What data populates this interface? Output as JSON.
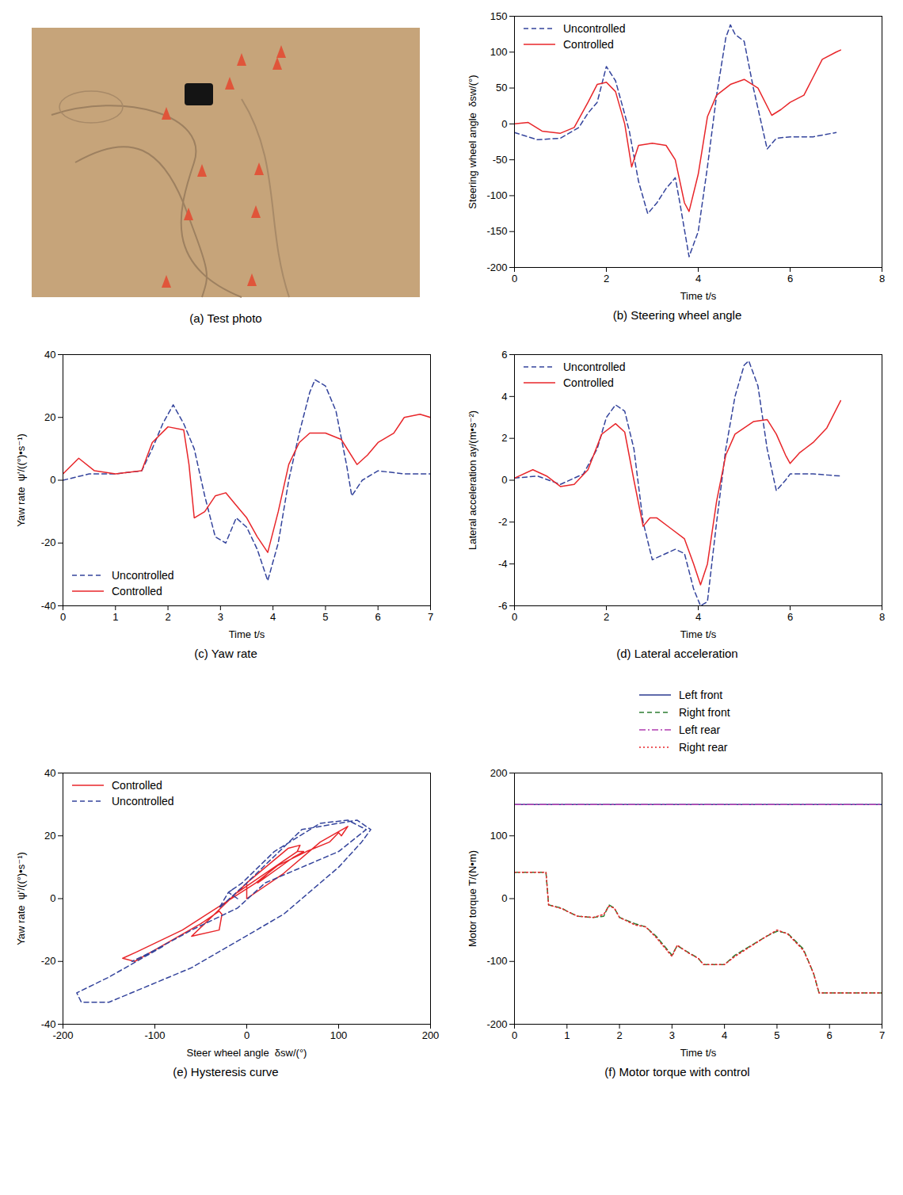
{
  "chart_data": [
    {
      "type": "image",
      "caption": "(a) Test photo"
    },
    {
      "type": "line",
      "caption": "(b) Steering wheel angle",
      "x_label": "Time t/s",
      "y_label": "Steering wheel angle  δsw/(°)",
      "xlim": [
        0,
        8
      ],
      "xticks": [
        0,
        2,
        4,
        6,
        8
      ],
      "ylim": [
        -200,
        150
      ],
      "yticks": [
        -200,
        -150,
        -100,
        -50,
        0,
        50,
        100,
        150
      ],
      "legend": "upper left",
      "series": [
        {
          "name": "Uncontrolled",
          "color": "#34449c",
          "line_style": "dashed",
          "x": [
            0,
            0.5,
            1,
            1.4,
            1.6,
            1.8,
            2.0,
            2.2,
            2.5,
            2.7,
            2.9,
            3.1,
            3.3,
            3.5,
            3.6,
            3.8,
            4.0,
            4.2,
            4.4,
            4.6,
            4.7,
            4.8,
            5.0,
            5.2,
            5.5,
            5.7,
            6.0,
            6.5,
            7.0
          ],
          "values": [
            -12,
            -22,
            -20,
            -5,
            15,
            30,
            80,
            60,
            -10,
            -80,
            -125,
            -110,
            -90,
            -75,
            -110,
            -185,
            -150,
            -60,
            40,
            120,
            138,
            125,
            115,
            50,
            -35,
            -20,
            -18,
            -18,
            -12
          ]
        },
        {
          "name": "Controlled",
          "color": "#e8262a",
          "line_style": "solid",
          "x": [
            0,
            0.3,
            0.6,
            1.0,
            1.3,
            1.6,
            1.8,
            2.0,
            2.2,
            2.4,
            2.55,
            2.7,
            3.0,
            3.3,
            3.5,
            3.7,
            3.8,
            4.0,
            4.2,
            4.4,
            4.7,
            5.0,
            5.3,
            5.6,
            5.8,
            6.0,
            6.3,
            6.5,
            6.7,
            7.0,
            7.1
          ],
          "values": [
            0,
            2,
            -10,
            -13,
            -5,
            30,
            55,
            58,
            45,
            0,
            -60,
            -30,
            -27,
            -30,
            -50,
            -110,
            -122,
            -70,
            10,
            40,
            55,
            62,
            50,
            12,
            20,
            30,
            40,
            65,
            90,
            100,
            103
          ]
        }
      ]
    },
    {
      "type": "line",
      "caption": "(c) Yaw rate",
      "x_label": "Time t/s",
      "y_label": "Yaw rate  ψ'/((°)•s⁻¹)",
      "xlim": [
        0,
        7
      ],
      "xticks": [
        0,
        1,
        2,
        3,
        4,
        5,
        6,
        7
      ],
      "ylim": [
        -40,
        40
      ],
      "yticks": [
        -40,
        -20,
        0,
        20,
        40
      ],
      "legend": "lower left",
      "series": [
        {
          "name": "Uncontrolled",
          "color": "#34449c",
          "line_style": "dashed",
          "x": [
            0,
            0.5,
            1,
            1.5,
            1.7,
            1.9,
            2.1,
            2.3,
            2.5,
            2.7,
            2.9,
            3.1,
            3.3,
            3.5,
            3.7,
            3.9,
            4.1,
            4.3,
            4.5,
            4.7,
            4.8,
            5.0,
            5.2,
            5.4,
            5.5,
            5.7,
            6.0,
            6.5,
            7.0
          ],
          "values": [
            0,
            2,
            2,
            3,
            10,
            18,
            24,
            18,
            10,
            -5,
            -18,
            -20,
            -12,
            -15,
            -22,
            -32,
            -20,
            0,
            15,
            28,
            32,
            30,
            22,
            5,
            -5,
            0,
            3,
            2,
            2
          ]
        },
        {
          "name": "Controlled",
          "color": "#e8262a",
          "line_style": "solid",
          "x": [
            0,
            0.3,
            0.6,
            1.0,
            1.5,
            1.7,
            2.0,
            2.3,
            2.4,
            2.5,
            2.7,
            2.9,
            3.1,
            3.3,
            3.5,
            3.7,
            3.9,
            4.1,
            4.3,
            4.5,
            4.7,
            5.0,
            5.3,
            5.6,
            5.8,
            6.0,
            6.3,
            6.5,
            6.8,
            7.0
          ],
          "values": [
            2,
            7,
            3,
            2,
            3,
            12,
            17,
            16,
            5,
            -12,
            -10,
            -5,
            -4,
            -8,
            -12,
            -18,
            -23,
            -10,
            5,
            12,
            15,
            15,
            13,
            5,
            8,
            12,
            15,
            20,
            21,
            20
          ]
        }
      ]
    },
    {
      "type": "line",
      "caption": "(d) Lateral acceleration",
      "x_label": "Time t/s",
      "y_label": "Lateral acceleration ay/(m•s⁻²)",
      "xlim": [
        0,
        8
      ],
      "xticks": [
        0,
        2,
        4,
        6,
        8
      ],
      "ylim": [
        -6,
        6
      ],
      "yticks": [
        -6,
        -4,
        -2,
        0,
        2,
        4,
        6
      ],
      "legend": "upper left",
      "series": [
        {
          "name": "Uncontrolled",
          "color": "#34449c",
          "line_style": "dashed",
          "x": [
            0,
            0.5,
            1,
            1.5,
            1.8,
            2.0,
            2.2,
            2.4,
            2.6,
            2.8,
            3.0,
            3.2,
            3.5,
            3.7,
            3.9,
            4.05,
            4.2,
            4.4,
            4.6,
            4.8,
            5.0,
            5.1,
            5.3,
            5.5,
            5.7,
            5.9,
            6.0,
            6.5,
            7.1
          ],
          "values": [
            0.1,
            0.2,
            -0.2,
            0.3,
            1.5,
            3,
            3.6,
            3.3,
            1.5,
            -2,
            -3.8,
            -3.6,
            -3.3,
            -3.5,
            -5.2,
            -6,
            -5.8,
            -2,
            1.5,
            4,
            5.5,
            5.7,
            4.5,
            1.5,
            -0.5,
            0,
            0.3,
            0.3,
            0.2
          ]
        },
        {
          "name": "Controlled",
          "color": "#e8262a",
          "line_style": "solid",
          "x": [
            0,
            0.4,
            0.7,
            1.0,
            1.3,
            1.6,
            1.9,
            2.2,
            2.4,
            2.6,
            2.8,
            2.95,
            3.1,
            3.4,
            3.7,
            3.9,
            4.05,
            4.2,
            4.4,
            4.6,
            4.8,
            5.2,
            5.5,
            5.7,
            5.9,
            6.0,
            6.2,
            6.5,
            6.8,
            7.1
          ],
          "values": [
            0.1,
            0.5,
            0.2,
            -0.3,
            -0.2,
            0.5,
            2.2,
            2.7,
            2.3,
            0,
            -2.2,
            -1.8,
            -1.8,
            -2.3,
            -2.8,
            -4,
            -5,
            -4,
            -1,
            1.2,
            2.2,
            2.8,
            2.9,
            2.2,
            1.2,
            0.8,
            1.3,
            1.8,
            2.5,
            3.8
          ]
        }
      ]
    },
    {
      "type": "line",
      "caption": "(e) Hysteresis curve",
      "x_label": "Steer wheel angle  δsw/(°)",
      "y_label": "Yaw rate  ψ'/((°)•s⁻¹)",
      "xlim": [
        -200,
        200
      ],
      "xticks": [
        -200,
        -100,
        0,
        100,
        200
      ],
      "ylim": [
        -40,
        40
      ],
      "yticks": [
        -40,
        -20,
        0,
        20,
        40
      ],
      "legend": "upper left",
      "series": [
        {
          "name": "Controlled",
          "color": "#e8262a",
          "line_style": "solid",
          "x": [
            0,
            0,
            -10,
            -5,
            30,
            55,
            58,
            45,
            0,
            -60,
            -30,
            -27,
            -30,
            -50,
            -110,
            -122,
            -135,
            -120,
            -70,
            10,
            40,
            55,
            62,
            50,
            12,
            30,
            65,
            90,
            100,
            103,
            110,
            80,
            40,
            0
          ],
          "values": [
            0,
            5,
            2,
            3,
            10,
            15,
            17,
            16,
            5,
            -12,
            -10,
            -5,
            -4,
            -8,
            -18,
            -20,
            -19,
            -17,
            -10,
            5,
            12,
            15,
            15,
            13,
            5,
            10,
            15,
            18,
            21,
            20,
            23,
            18,
            8,
            0
          ]
        },
        {
          "name": "Uncontrolled",
          "color": "#34449c",
          "line_style": "dashed",
          "x": [
            -10,
            -20,
            -5,
            30,
            80,
            110,
            130,
            100,
            60,
            20,
            -10,
            -60,
            -110,
            -125,
            -90,
            -150,
            -185,
            -180,
            -150,
            -60,
            40,
            100,
            125,
            135,
            120,
            60,
            0,
            -30,
            -20,
            -15
          ],
          "values": [
            0,
            2,
            5,
            15,
            24,
            25,
            22,
            15,
            10,
            5,
            -3,
            -10,
            -18,
            -20,
            -15,
            -25,
            -30,
            -33,
            -33,
            -22,
            -5,
            10,
            18,
            22,
            25,
            22,
            5,
            -3,
            2,
            3
          ]
        }
      ]
    },
    {
      "type": "line",
      "caption": "(f) Motor torque with control",
      "x_label": "Time t/s",
      "y_label": "Motor torque T/(N•m)",
      "xlim": [
        0,
        7
      ],
      "xticks": [
        0,
        1,
        2,
        3,
        4,
        5,
        6,
        7
      ],
      "ylim": [
        -200,
        200
      ],
      "yticks": [
        -200,
        -100,
        0,
        100,
        200
      ],
      "legend": "top",
      "series": [
        {
          "name": "Left front",
          "color": "#2b3a8f",
          "line_style": "solid",
          "x": [
            0,
            7
          ],
          "values": [
            150,
            150
          ]
        },
        {
          "name": "Right front",
          "color": "#2e7d32",
          "line_style": "dashed",
          "x": [
            0,
            0.6,
            0.65,
            0.9,
            1.0,
            1.2,
            1.5,
            1.7,
            1.8,
            1.9,
            2.0,
            2.3,
            2.5,
            2.7,
            2.9,
            3.0,
            3.1,
            3.3,
            3.5,
            3.6,
            4.0,
            4.2,
            4.5,
            4.8,
            5.0,
            5.2,
            5.5,
            5.6,
            5.7,
            5.8,
            7.0
          ],
          "values": [
            42,
            42,
            -10,
            -15,
            -20,
            -28,
            -30,
            -28,
            -10,
            -15,
            -30,
            -40,
            -45,
            -60,
            -80,
            -90,
            -75,
            -85,
            -95,
            -105,
            -105,
            -90,
            -75,
            -60,
            -52,
            -55,
            -80,
            -100,
            -120,
            -150,
            -150
          ]
        },
        {
          "name": "Left rear",
          "color": "#b03cb0",
          "line_style": "dashdot",
          "x": [
            0,
            7
          ],
          "values": [
            150,
            150
          ]
        },
        {
          "name": "Right rear",
          "color": "#e8262a",
          "line_style": "dotted",
          "x": [
            0,
            0.6,
            0.65,
            0.9,
            1.0,
            1.2,
            1.5,
            1.7,
            1.8,
            1.9,
            2.0,
            2.3,
            2.5,
            2.7,
            2.9,
            3.0,
            3.1,
            3.3,
            3.5,
            3.6,
            4.0,
            4.2,
            4.5,
            4.8,
            5.0,
            5.2,
            5.5,
            5.6,
            5.7,
            5.8,
            7.0
          ],
          "values": [
            42,
            42,
            -10,
            -16,
            -20,
            -28,
            -30,
            -25,
            -12,
            -15,
            -30,
            -42,
            -45,
            -62,
            -82,
            -92,
            -74,
            -86,
            -95,
            -105,
            -105,
            -92,
            -76,
            -60,
            -50,
            -56,
            -82,
            -100,
            -120,
            -150,
            -150
          ]
        }
      ]
    }
  ]
}
